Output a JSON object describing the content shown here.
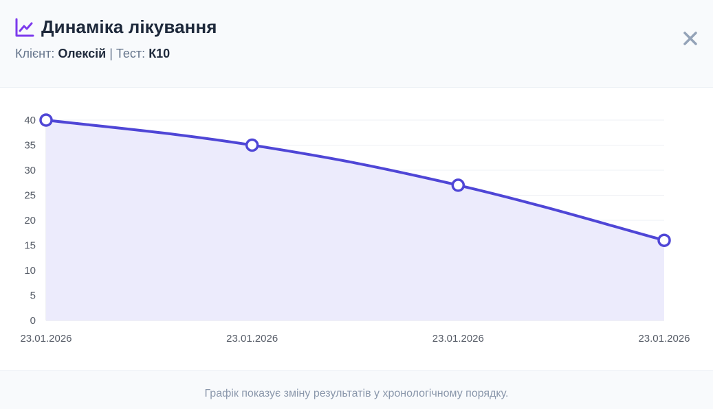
{
  "header": {
    "title": "Динаміка лікування",
    "client_label": "Клієнт:",
    "client_name": "Олексій",
    "separator": "|",
    "test_label": "Тест:",
    "test_name": "К10",
    "icon": "chart-line-icon",
    "close_icon": "close-icon"
  },
  "footer": {
    "note": "Графік показує зміну результатів у хронологічному порядку."
  },
  "colors": {
    "line": "#4f46d6",
    "area": "#ecebfc",
    "icon": "#7c3aed",
    "close": "#94a3b8"
  },
  "chart_data": {
    "type": "area",
    "categories": [
      "23.01.2026",
      "23.01.2026",
      "23.01.2026",
      "23.01.2026"
    ],
    "values": [
      40,
      35,
      27,
      16
    ],
    "yticks": [
      0,
      5,
      10,
      15,
      20,
      25,
      30,
      35,
      40
    ],
    "ylim": [
      0,
      40
    ],
    "grid": true,
    "legend": "none"
  }
}
